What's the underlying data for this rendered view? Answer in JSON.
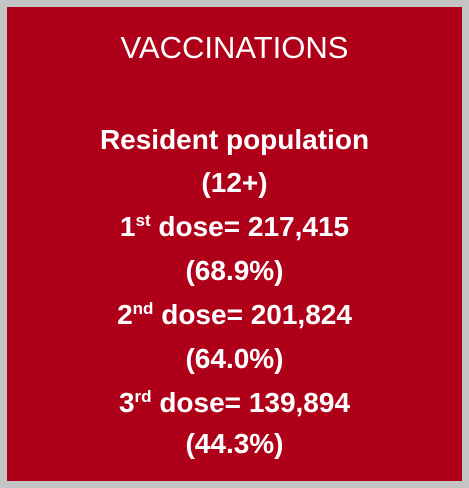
{
  "title": "VACCINATIONS",
  "subtitle": "Resident population",
  "age_group": "(12+)",
  "doses": [
    {
      "ordinal": "1",
      "suffix": "st",
      "label": "dose=",
      "count": "217,415",
      "percent": "(68.9%)"
    },
    {
      "ordinal": "2",
      "suffix": "nd",
      "label": "dose=",
      "count": "201,824",
      "percent": "(64.0%)"
    },
    {
      "ordinal": "3",
      "suffix": "rd",
      "label": "dose=",
      "count": "139,894",
      "percent": "(44.3%)"
    }
  ]
}
